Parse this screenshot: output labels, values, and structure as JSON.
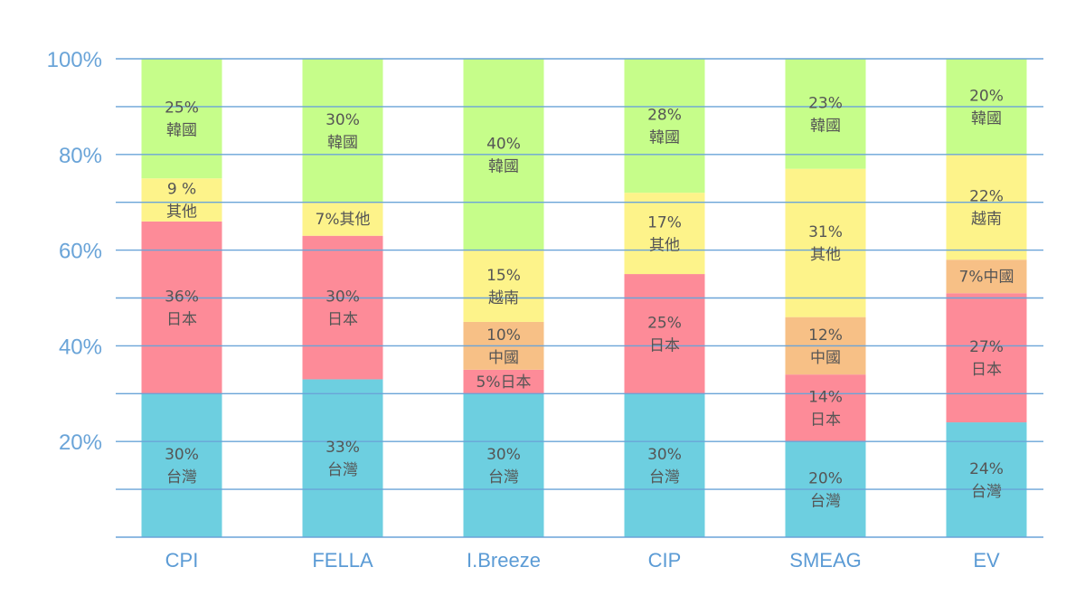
{
  "colors": {
    "台灣": "#6dcfe0",
    "日本": "#fd8b98",
    "中國": "#f7c086",
    "越南": "#fdf38a",
    "其他": "#fdf38a",
    "韓國": "#c6fd8a",
    "axis": "#6aa4d8"
  },
  "chart_data": {
    "type": "bar",
    "stacked": true,
    "ylim": [
      0,
      100
    ],
    "yticks": [
      "20%",
      "40%",
      "60%",
      "80%",
      "100%"
    ],
    "ytick_values": [
      20,
      40,
      60,
      80,
      100
    ],
    "grid": true,
    "categories": [
      "CPI",
      "FELLA",
      "I.Breeze",
      "CIP",
      "SMEAG",
      "EV"
    ],
    "bars": [
      {
        "category": "CPI",
        "segments": [
          {
            "name": "台灣",
            "value": 30,
            "label": [
              "30%",
              "台灣"
            ]
          },
          {
            "name": "日本",
            "value": 36,
            "label": [
              "36%",
              "日本"
            ]
          },
          {
            "name": "其他",
            "value": 9,
            "label": [
              "9 %",
              "其他"
            ]
          },
          {
            "name": "韓國",
            "value": 25,
            "label": [
              "25%",
              "韓國"
            ]
          }
        ]
      },
      {
        "category": "FELLA",
        "segments": [
          {
            "name": "台灣",
            "value": 33,
            "label": [
              "33%",
              "台灣"
            ]
          },
          {
            "name": "日本",
            "value": 30,
            "label": [
              "30%",
              "日本"
            ]
          },
          {
            "name": "其他",
            "value": 7,
            "label": [
              "7%其他"
            ]
          },
          {
            "name": "韓國",
            "value": 30,
            "label": [
              "30%",
              "韓國"
            ]
          }
        ]
      },
      {
        "category": "I.Breeze",
        "segments": [
          {
            "name": "台灣",
            "value": 30,
            "label": [
              "30%",
              "台灣"
            ]
          },
          {
            "name": "日本",
            "value": 5,
            "label": [
              "5%日本"
            ]
          },
          {
            "name": "中國",
            "value": 10,
            "label": [
              "10%",
              "中國"
            ]
          },
          {
            "name": "越南",
            "value": 15,
            "label": [
              "15%",
              "越南"
            ]
          },
          {
            "name": "韓國",
            "value": 40,
            "label": [
              "40%",
              "韓國"
            ]
          }
        ]
      },
      {
        "category": "CIP",
        "segments": [
          {
            "name": "台灣",
            "value": 30,
            "label": [
              "30%",
              "台灣"
            ]
          },
          {
            "name": "日本",
            "value": 25,
            "label": [
              "25%",
              "日本"
            ]
          },
          {
            "name": "其他",
            "value": 17,
            "label": [
              "17%",
              "其他"
            ]
          },
          {
            "name": "韓國",
            "value": 28,
            "label": [
              "28%",
              "韓國"
            ]
          }
        ]
      },
      {
        "category": "SMEAG",
        "segments": [
          {
            "name": "台灣",
            "value": 20,
            "label": [
              "20%",
              "台灣"
            ]
          },
          {
            "name": "日本",
            "value": 14,
            "label": [
              "14%",
              "日本"
            ]
          },
          {
            "name": "中國",
            "value": 12,
            "label": [
              "12%",
              "中國"
            ]
          },
          {
            "name": "其他",
            "value": 31,
            "label": [
              "31%",
              "其他"
            ]
          },
          {
            "name": "韓國",
            "value": 23,
            "label": [
              "23%",
              "韓國"
            ]
          }
        ]
      },
      {
        "category": "EV",
        "segments": [
          {
            "name": "台灣",
            "value": 24,
            "label": [
              "24%",
              "台灣"
            ]
          },
          {
            "name": "日本",
            "value": 27,
            "label": [
              "27%",
              "日本"
            ]
          },
          {
            "name": "中國",
            "value": 7,
            "label": [
              "7%中國"
            ]
          },
          {
            "name": "越南",
            "value": 22,
            "label": [
              "22%",
              "越南"
            ]
          },
          {
            "name": "韓國",
            "value": 20,
            "label": [
              "20%",
              "韓國"
            ]
          }
        ]
      }
    ]
  }
}
